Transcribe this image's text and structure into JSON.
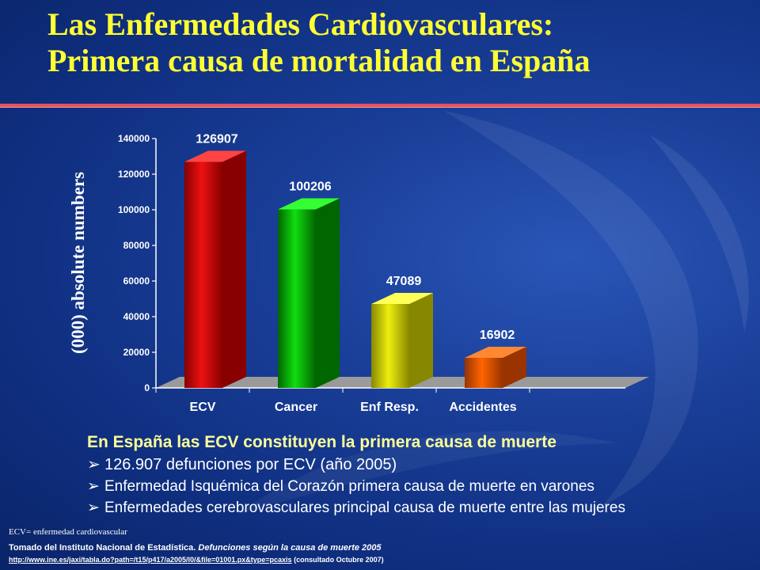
{
  "slide": {
    "title_line1": "Las Enfermedades Cardiovasculares:",
    "title_line2": "Primera causa de mortalidad en España",
    "headline": "En España las ECV constituyen la primera causa de muerte",
    "bullets": [
      "126.907 defunciones por ECV (año 2005)",
      "Enfermedad Isquémica del Corazón primera causa de muerte en varones",
      "Enfermedades cerebrovasculares principal causa de muerte entre las mujeres"
    ],
    "bullet_marker": "➢",
    "footnote_abbrev": "ECV= enfermedad cardiovascular",
    "source_prefix": "Tomado del Instituto Nacional de Estadística.",
    "source_title": "Defunciones según la causa de muerte 2005",
    "source_url": "http://www.ine.es/jaxi/tabla.do?path=/t15/p417/a2005/l0/&file=01001.px&type=pcaxis",
    "source_note": "(consultado Octubre 2007)"
  },
  "chart_data": {
    "type": "bar",
    "ylabel": "(000) absolute numbers",
    "categories": [
      "ECV",
      "Cancer",
      "Enf Resp.",
      "Accidentes"
    ],
    "values": [
      126907,
      100206,
      47089,
      16902
    ],
    "value_labels": [
      "126907",
      "100206",
      "47089",
      "16902"
    ],
    "ylim": [
      0,
      140000
    ],
    "yticks": [
      0,
      20000,
      40000,
      60000,
      80000,
      100000,
      120000,
      140000
    ],
    "ytick_labels": [
      "0",
      "20000",
      "40000",
      "60000",
      "80000",
      "100000",
      "120000",
      "140000"
    ],
    "grid": false,
    "legend": "none",
    "colors": {
      "front": [
        "#ee1111",
        "#11dd11",
        "#eeee11",
        "#ff6600"
      ],
      "side": [
        "#880000",
        "#006600",
        "#888800",
        "#993300"
      ],
      "top": [
        "#ff4444",
        "#33ff33",
        "#ffff55",
        "#ff8833"
      ],
      "floor": "#9a9a9a",
      "accent": "#ffff33",
      "rule": "#e8505b"
    }
  }
}
